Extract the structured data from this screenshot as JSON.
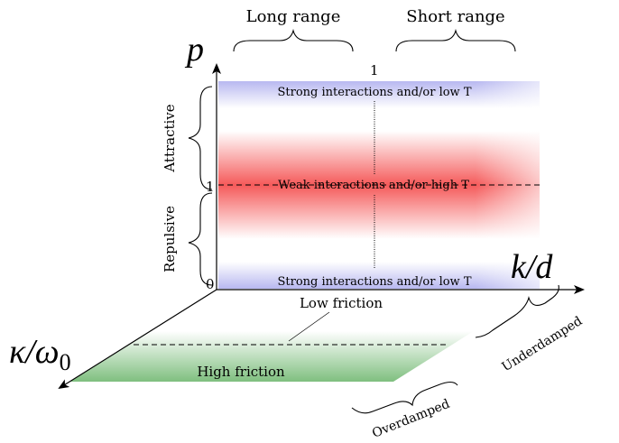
{
  "axes": {
    "vertical": "p",
    "horizontal": "k/d",
    "depth_kappa": "κ/ω",
    "depth_sub": "0"
  },
  "ticks": {
    "zero": "0",
    "one_left": "1",
    "one_top": "1"
  },
  "range_labels": {
    "long": "Long range",
    "short": "Short range"
  },
  "side_labels": {
    "attractive": "Attractive",
    "repulsive": "Repulsive"
  },
  "band_labels": {
    "top": "Strong interactions and/or low T",
    "middle": "Weak interactions and/or high T",
    "bottom": "Strong interactions and/or low T"
  },
  "floor_labels": {
    "low_friction": "Low friction",
    "high_friction": "High friction"
  },
  "damping_labels": {
    "underdamped": "Underdamped",
    "overdamped": "Overdamped"
  },
  "colors": {
    "attractive_band": "#b8b8f0",
    "weak_band": "#f55a5a",
    "high_friction": "#7fbf7f"
  }
}
